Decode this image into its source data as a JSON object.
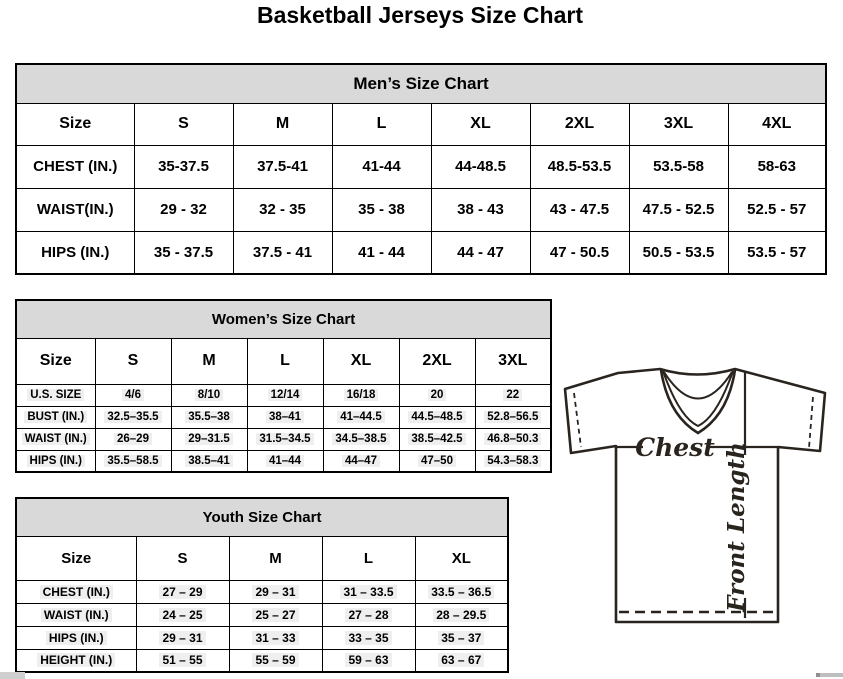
{
  "page_title": "Basketball Jerseys Size Chart",
  "tables": {
    "men": {
      "title": "Men’s Size Chart",
      "columns": [
        "Size",
        "S",
        "M",
        "L",
        "XL",
        "2XL",
        "3XL",
        "4XL"
      ],
      "rows": [
        {
          "label": "CHEST (IN.)",
          "values": [
            "35-37.5",
            "37.5-41",
            "41-44",
            "44-48.5",
            "48.5-53.5",
            "53.5-58",
            "58-63"
          ]
        },
        {
          "label": "WAIST(IN.)",
          "values": [
            "29 - 32",
            "32 - 35",
            "35 - 38",
            "38 - 43",
            "43 - 47.5",
            "47.5 - 52.5",
            "52.5 - 57"
          ]
        },
        {
          "label": "HIPS (IN.)",
          "values": [
            "35 - 37.5",
            "37.5 - 41",
            "41 - 44",
            "44 - 47",
            "47 - 50.5",
            "50.5 - 53.5",
            "53.5 - 57"
          ]
        }
      ]
    },
    "women": {
      "title": "Women’s Size Chart",
      "columns": [
        "Size",
        "S",
        "M",
        "L",
        "XL",
        "2XL",
        "3XL"
      ],
      "rows": [
        {
          "label": "U.S. SIZE",
          "values": [
            "4/6",
            "8/10",
            "12/14",
            "16/18",
            "20",
            "22"
          ]
        },
        {
          "label": "BUST (IN.)",
          "values": [
            "32.5–35.5",
            "35.5–38",
            "38–41",
            "41–44.5",
            "44.5–48.5",
            "52.8–56.5"
          ]
        },
        {
          "label": "WAIST (IN.)",
          "values": [
            "26–29",
            "29–31.5",
            "31.5–34.5",
            "34.5–38.5",
            "38.5–42.5",
            "46.8–50.3"
          ]
        },
        {
          "label": "HIPS (IN.)",
          "values": [
            "35.5–58.5",
            "38.5–41",
            "41–44",
            "44–47",
            "47–50",
            "54.3–58.3"
          ]
        }
      ]
    },
    "youth": {
      "title": "Youth Size Chart",
      "columns": [
        "Size",
        "S",
        "M",
        "L",
        "XL"
      ],
      "rows": [
        {
          "label": "CHEST (IN.)",
          "values": [
            "27 – 29",
            "29 – 31",
            "31 – 33.5",
            "33.5 – 36.5"
          ]
        },
        {
          "label": "WAIST (IN.)",
          "values": [
            "24 – 25",
            "25 – 27",
            "27 – 28",
            "28 – 29.5"
          ]
        },
        {
          "label": "HIPS (IN.)",
          "values": [
            "29 – 31",
            "31 – 33",
            "33 – 35",
            "35 – 37"
          ]
        },
        {
          "label": "HEIGHT (IN.)",
          "values": [
            "51 – 55",
            "55 – 59",
            "59 – 63",
            "63 – 67"
          ]
        }
      ]
    }
  },
  "diagram": {
    "chest_label": "Chest",
    "front_length_label": "Front Length"
  },
  "colors": {
    "table_header_bg": "#d9d9d9",
    "table_border": "#000000",
    "jersey_line": "#2a241f",
    "value_highlight": "#efefef"
  }
}
